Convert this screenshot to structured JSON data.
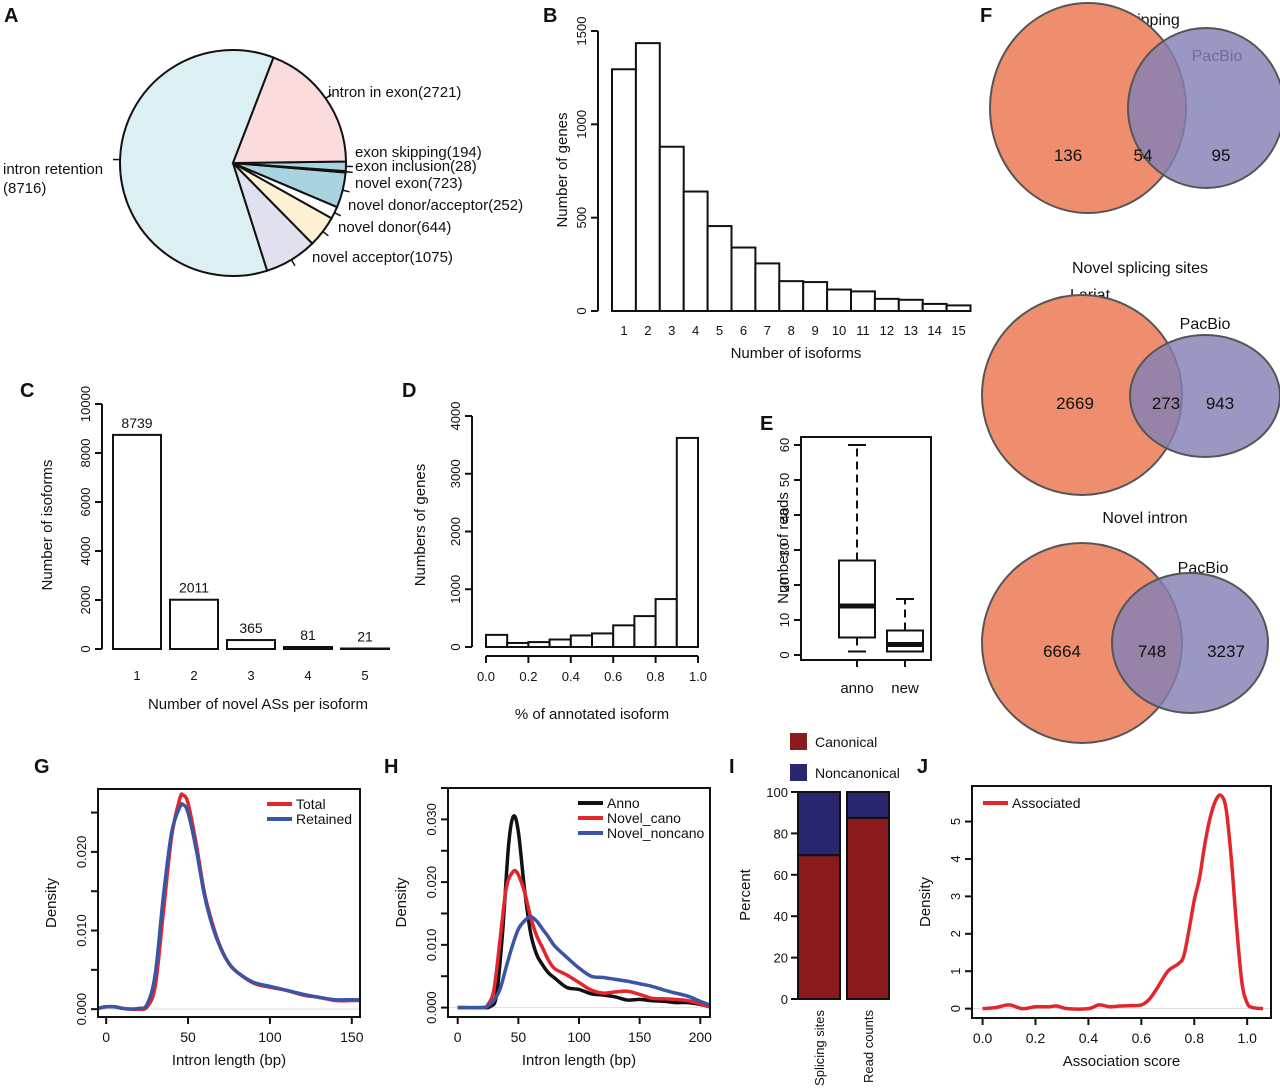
{
  "figure": {
    "panels": [
      "A",
      "B",
      "C",
      "D",
      "E",
      "F",
      "G",
      "H",
      "I",
      "J"
    ]
  },
  "chart_data": [
    {
      "panel": "A",
      "type": "pie",
      "slices": [
        {
          "label": "intron retention",
          "label_line2": "(8716)",
          "value": 8716,
          "color": "#dcf0f4"
        },
        {
          "label": "novel acceptor(1075)",
          "value": 1075,
          "color": "#e1e0ee"
        },
        {
          "label": "novel donor(644)",
          "value": 644,
          "color": "#fdf0d3"
        },
        {
          "label": "novel donor/acceptor(252)",
          "value": 252,
          "color": "#ffffff"
        },
        {
          "label": "novel exon(723)",
          "value": 723,
          "color": "#a8d3df"
        },
        {
          "label": "exon inclusion(28)",
          "value": 28,
          "color": "#c7e3ea"
        },
        {
          "label": "exon skipping(194)",
          "value": 194,
          "color": "#a8d3df"
        },
        {
          "label": "intron in exon(2721)",
          "value": 2721,
          "color": "#fbdcdc"
        }
      ]
    },
    {
      "panel": "B",
      "type": "bar",
      "categories": [
        "1",
        "2",
        "3",
        "4",
        "5",
        "6",
        "7",
        "8",
        "9",
        "10",
        "11",
        "12",
        "13",
        "14",
        "15"
      ],
      "values": [
        1295,
        1435,
        880,
        640,
        455,
        340,
        255,
        160,
        155,
        115,
        105,
        65,
        60,
        38,
        30
      ],
      "xlabel": "Number of isoforms",
      "ylabel": "Number of genes",
      "ylim": [
        0,
        1500
      ],
      "yticks": [
        0,
        500,
        1000,
        1500
      ]
    },
    {
      "panel": "C",
      "type": "bar",
      "categories": [
        "1",
        "2",
        "3",
        "4",
        "5"
      ],
      "values": [
        8739,
        2011,
        365,
        81,
        21
      ],
      "data_labels": [
        "8739",
        "2011",
        "365",
        "81",
        "21"
      ],
      "xlabel": "Number of novel ASs per isoform",
      "ylabel": "Number of isoforms",
      "ylim": [
        0,
        10000
      ],
      "yticks": [
        0,
        2000,
        4000,
        6000,
        8000,
        10000
      ]
    },
    {
      "panel": "D",
      "type": "bar",
      "bin_edges": [
        0.0,
        0.1,
        0.2,
        0.3,
        0.4,
        0.5,
        0.6,
        0.7,
        0.8,
        0.9,
        1.0
      ],
      "values": [
        210,
        70,
        85,
        130,
        200,
        235,
        375,
        535,
        830,
        3620
      ],
      "xlabel": "% of annotated isoform",
      "ylabel": "Numbers of genes",
      "ylim": [
        0,
        4000
      ],
      "yticks": [
        0,
        1000,
        2000,
        3000,
        4000
      ],
      "xticks": [
        "0.0",
        "0.2",
        "0.4",
        "0.6",
        "0.8",
        "1.0"
      ]
    },
    {
      "panel": "E",
      "type": "box",
      "categories": [
        "anno",
        "new"
      ],
      "boxes": [
        {
          "name": "anno",
          "whisker_low": 1,
          "q1": 5,
          "median": 14,
          "q3": 27,
          "whisker_high": 60
        },
        {
          "name": "new",
          "whisker_low": 1,
          "q1": 1,
          "median": 3,
          "q3": 7,
          "whisker_high": 16
        }
      ],
      "ylabel": "Number of reads",
      "ylim": [
        0,
        62
      ],
      "yticks": [
        0,
        10,
        20,
        30,
        40,
        50,
        60
      ]
    },
    {
      "panel": "F",
      "type": "venn",
      "set_a": "Lariat",
      "set_b": "PacBio",
      "color_a": "#ef8e6e",
      "color_b": "#8480b5",
      "diagrams": [
        {
          "title": "Exon skipping",
          "only_a": 136,
          "both": 54,
          "only_b": 95
        },
        {
          "title": "Novel splicing sites",
          "only_a": 2669,
          "both": 273,
          "only_b": 943
        },
        {
          "title": "Novel intron",
          "only_a": 6664,
          "both": 748,
          "only_b": 3237
        }
      ]
    },
    {
      "panel": "G",
      "type": "line",
      "xlabel": "Intron length (bp)",
      "ylabel": "Density",
      "xlim": [
        -5,
        155
      ],
      "ylim": [
        -0.001,
        0.028
      ],
      "xticks": [
        0,
        50,
        100,
        150
      ],
      "yticks": [
        0.0,
        0.005,
        0.01,
        0.015,
        0.02,
        0.025
      ],
      "ytick_labels": [
        "0.000",
        "",
        "0.010",
        "",
        "0.020",
        ""
      ],
      "legend": "top-right",
      "series": [
        {
          "name": "Total",
          "color": "#e3262b",
          "x": [
            -5,
            0,
            5,
            10,
            15,
            20,
            25,
            30,
            35,
            40,
            45,
            47,
            50,
            55,
            60,
            65,
            70,
            75,
            80,
            90,
            100,
            110,
            120,
            130,
            140,
            150,
            155
          ],
          "y": [
            0.0001,
            0.0003,
            0.0003,
            0.0001,
            0.0,
            0.0,
            0.0003,
            0.003,
            0.0125,
            0.022,
            0.0268,
            0.0272,
            0.0262,
            0.021,
            0.0148,
            0.0108,
            0.0078,
            0.0058,
            0.0047,
            0.0033,
            0.0028,
            0.0024,
            0.0018,
            0.0015,
            0.0011,
            0.0011,
            0.0011
          ]
        },
        {
          "name": "Retained",
          "color": "#3a55a4",
          "x": [
            -5,
            0,
            5,
            10,
            15,
            20,
            25,
            30,
            35,
            40,
            45,
            47,
            50,
            55,
            60,
            65,
            70,
            75,
            80,
            90,
            100,
            110,
            120,
            130,
            140,
            150,
            155
          ],
          "y": [
            0.0001,
            0.0003,
            0.0003,
            0.0001,
            0.0,
            0.0001,
            0.0006,
            0.0045,
            0.0145,
            0.0225,
            0.0257,
            0.026,
            0.025,
            0.0203,
            0.0145,
            0.0105,
            0.0077,
            0.0058,
            0.0047,
            0.0034,
            0.0029,
            0.0024,
            0.0019,
            0.0015,
            0.0012,
            0.0012,
            0.0012
          ]
        }
      ]
    },
    {
      "panel": "H",
      "type": "line",
      "xlabel": "Intron length (bp)",
      "ylabel": "Density",
      "xlim": [
        -8,
        208
      ],
      "ylim": [
        -0.0015,
        0.035
      ],
      "xticks": [
        0,
        50,
        100,
        150,
        200
      ],
      "yticks": [
        0.0,
        0.005,
        0.01,
        0.015,
        0.02,
        0.025,
        0.03,
        0.035
      ],
      "ytick_labels": [
        "0.000",
        "",
        "0.010",
        "",
        "0.020",
        "",
        "0.030",
        ""
      ],
      "legend": "top-right",
      "series": [
        {
          "name": "Anno",
          "color": "#111111",
          "x": [
            0,
            20,
            27,
            32,
            37,
            42,
            46,
            50,
            55,
            60,
            65,
            70,
            75,
            80,
            90,
            100,
            110,
            120,
            130,
            140,
            150,
            160,
            170,
            180,
            190,
            200,
            208
          ],
          "y": [
            0,
            0,
            0.0002,
            0.002,
            0.012,
            0.026,
            0.0305,
            0.028,
            0.019,
            0.012,
            0.0085,
            0.0068,
            0.0055,
            0.0047,
            0.0032,
            0.0029,
            0.0022,
            0.002,
            0.0017,
            0.0012,
            0.0013,
            0.0011,
            0.001,
            0.0008,
            0.0008,
            0.0005,
            0.0001
          ]
        },
        {
          "name": "Novel_cano",
          "color": "#e3262b",
          "x": [
            0,
            20,
            25,
            30,
            35,
            40,
            45,
            49,
            55,
            60,
            65,
            70,
            75,
            80,
            90,
            100,
            110,
            120,
            130,
            140,
            150,
            160,
            170,
            180,
            190,
            200,
            208
          ],
          "y": [
            0,
            0,
            0.0005,
            0.003,
            0.011,
            0.019,
            0.0215,
            0.0215,
            0.0185,
            0.0145,
            0.0115,
            0.0095,
            0.0075,
            0.0062,
            0.0052,
            0.004,
            0.0028,
            0.0023,
            0.0025,
            0.0026,
            0.0021,
            0.0015,
            0.0014,
            0.0013,
            0.0011,
            0.0006,
            0.0001
          ]
        },
        {
          "name": "Novel_noncano",
          "color": "#3a55a4",
          "x": [
            0,
            20,
            25,
            30,
            35,
            40,
            45,
            50,
            55,
            60,
            65,
            70,
            75,
            80,
            90,
            100,
            110,
            120,
            130,
            140,
            150,
            160,
            170,
            180,
            190,
            200,
            208
          ],
          "y": [
            0,
            0,
            0.0003,
            0.0012,
            0.003,
            0.0065,
            0.0098,
            0.0125,
            0.0138,
            0.0145,
            0.0138,
            0.0125,
            0.0112,
            0.0098,
            0.008,
            0.0063,
            0.005,
            0.0048,
            0.0045,
            0.0042,
            0.0038,
            0.0034,
            0.0028,
            0.0023,
            0.0018,
            0.001,
            0.0004
          ]
        }
      ]
    },
    {
      "panel": "I",
      "type": "bar",
      "stacked": true,
      "categories": [
        "Splicing sites",
        "Read counts"
      ],
      "series": [
        {
          "name": "Canonical",
          "color": "#8b1a1e",
          "values": [
            69.5,
            87.5
          ]
        },
        {
          "name": "Noncanonical",
          "color": "#29286e",
          "values": [
            30.5,
            12.5
          ]
        }
      ],
      "ylabel": "Percent",
      "ylim": [
        0,
        100
      ],
      "yticks": [
        0,
        20,
        40,
        60,
        80,
        100
      ],
      "legend": "top"
    },
    {
      "panel": "J",
      "type": "line",
      "xlabel": "Association score",
      "ylabel": "Density",
      "xlim": [
        -0.04,
        1.09
      ],
      "ylim": [
        -0.25,
        5.95
      ],
      "xticks": [
        "0.0",
        "0.2",
        "0.4",
        "0.6",
        "0.8",
        "1.0"
      ],
      "yticks": [
        0,
        1,
        2,
        3,
        4,
        5
      ],
      "legend": "top-left",
      "series": [
        {
          "name": "Associated",
          "color": "#e3262b",
          "x": [
            0.0,
            0.05,
            0.1,
            0.15,
            0.2,
            0.25,
            0.28,
            0.32,
            0.4,
            0.44,
            0.48,
            0.52,
            0.56,
            0.6,
            0.63,
            0.66,
            0.7,
            0.74,
            0.76,
            0.78,
            0.8,
            0.82,
            0.84,
            0.86,
            0.88,
            0.9,
            0.92,
            0.94,
            0.96,
            0.98,
            1.0,
            1.02,
            1.06
          ],
          "y": [
            0.0,
            0.03,
            0.1,
            0.0,
            0.05,
            0.05,
            0.07,
            0.0,
            0.0,
            0.1,
            0.05,
            0.07,
            0.08,
            0.1,
            0.25,
            0.55,
            1.0,
            1.2,
            1.4,
            2.1,
            2.9,
            3.5,
            4.4,
            5.1,
            5.55,
            5.7,
            5.35,
            4.0,
            2.2,
            0.7,
            0.15,
            0.03,
            0.0
          ]
        }
      ]
    }
  ]
}
